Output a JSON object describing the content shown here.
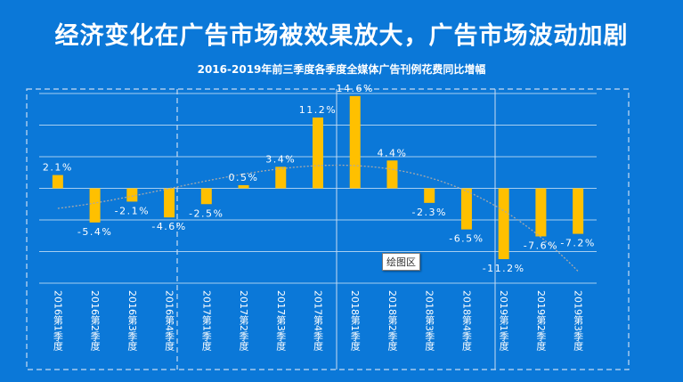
{
  "header": {
    "title": "经济变化在广告市场被效果放大，广告市场波动加剧",
    "subtitle": "2016-2019年前三季度各季度全媒体广告刊例花费同比增幅"
  },
  "tooltip": {
    "label": "绘图区"
  },
  "colors": {
    "background": "#0b78d8",
    "bar": "#ffc000",
    "trendline": "#a9a9a9",
    "grid": "#ffffff"
  },
  "chart_data": {
    "type": "bar",
    "title": "2016-2019年前三季度各季度全媒体广告刊例花费同比增幅",
    "categories": [
      "2016第1季度",
      "2016第2季度",
      "2016第3季度",
      "2016第4季度",
      "2017第1季度",
      "2017第2季度",
      "2017第3季度",
      "2017第4季度",
      "2018第1季度",
      "2018第2季度",
      "2018第3季度",
      "2018第4季度",
      "2019第1季度",
      "2019第2季度",
      "2019第3季度"
    ],
    "values": [
      2.1,
      -5.4,
      -2.1,
      -4.6,
      -2.5,
      0.5,
      3.4,
      11.2,
      14.6,
      4.4,
      -2.3,
      -6.5,
      -11.2,
      -7.6,
      -7.2
    ],
    "labels": [
      "2.1%",
      "-5.4%",
      "-2.1%",
      "-4.6%",
      "-2.5%",
      "0.5%",
      "3.4%",
      "11.2%",
      "14.6%",
      "4.4%",
      "-2.3%",
      "-6.5%",
      "-11.2%",
      "-7.6%",
      "-7.2%"
    ],
    "ylim": [
      -15,
      15
    ],
    "grid": true,
    "trendline": "polynomial"
  }
}
